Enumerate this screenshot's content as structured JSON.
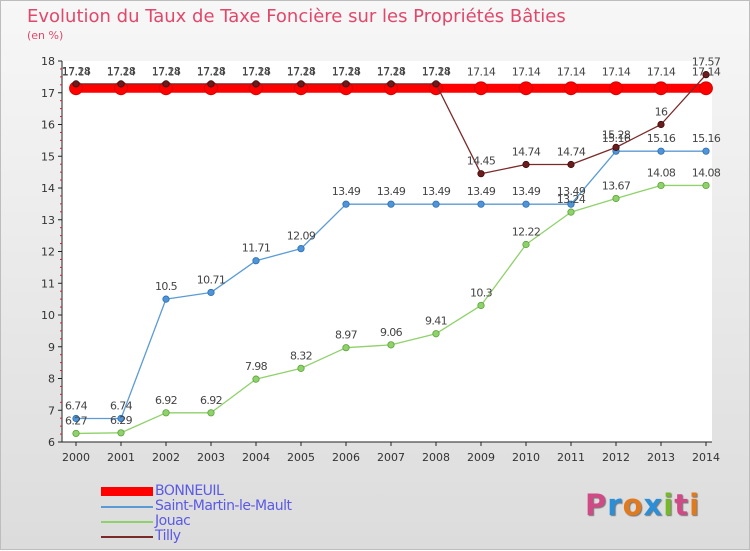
{
  "title": "Evolution du Taux de Taxe Foncière sur les Propriétés Bâties",
  "unit": "(en %)",
  "logo": {
    "text": "Proxiti",
    "colors": [
      "#d04a86",
      "#2a8fd6",
      "#e07a1f",
      "#2a8fd6",
      "#76b82a",
      "#d04a86",
      "#e07a1f"
    ]
  },
  "chart_data": {
    "type": "line",
    "x": [
      "2000",
      "2001",
      "2002",
      "2003",
      "2004",
      "2005",
      "2006",
      "2007",
      "2008",
      "2009",
      "2010",
      "2011",
      "2012",
      "2013",
      "2014"
    ],
    "ylim": [
      6,
      18
    ],
    "yticks": [
      "6",
      "7",
      "8",
      "9",
      "10",
      "11",
      "12",
      "13",
      "14",
      "15",
      "16",
      "17",
      "18"
    ],
    "grid": false,
    "legend_position": "bottom-left",
    "series": [
      {
        "name": "BONNEUIL",
        "color": "#ff0000",
        "values": [
          17.14,
          17.14,
          17.14,
          17.14,
          17.14,
          17.14,
          17.14,
          17.14,
          17.14,
          17.14,
          17.14,
          17.14,
          17.14,
          17.14,
          17.14
        ],
        "labels": [
          "17.14",
          "17.14",
          "17.14",
          "17.14",
          "17.14",
          "17.14",
          "17.14",
          "17.14",
          "17.14",
          "17.14",
          "17.14",
          "17.14",
          "17.14",
          "17.14",
          "17.14"
        ]
      },
      {
        "name": "Saint-Martin-le-Mault",
        "color": "#5b9bd5",
        "values": [
          6.74,
          6.74,
          10.5,
          10.71,
          11.71,
          12.09,
          13.49,
          13.49,
          13.49,
          13.49,
          13.49,
          13.49,
          15.16,
          15.16,
          15.16
        ],
        "labels": [
          "6.74",
          "6.74",
          "10.5",
          "10.71",
          "11.71",
          "12.09",
          "13.49",
          "13.49",
          "13.49",
          "13.49",
          "13.49",
          "13.49",
          "15.16",
          "15.16",
          "15.16"
        ]
      },
      {
        "name": "Jouac",
        "color": "#8fd16a",
        "values": [
          6.27,
          6.29,
          6.92,
          6.92,
          7.98,
          8.32,
          8.97,
          9.06,
          9.41,
          10.3,
          12.22,
          13.24,
          13.67,
          14.08,
          14.08
        ],
        "labels": [
          "6.27",
          "6.29",
          "6.92",
          "6.92",
          "7.98",
          "8.32",
          "8.97",
          "9.06",
          "9.41",
          "10.3",
          "12.22",
          "13.24",
          "13.67",
          "14.08",
          "14.08"
        ]
      },
      {
        "name": "Tilly",
        "color": "#7b2a2a",
        "values": [
          17.28,
          17.28,
          17.28,
          17.28,
          17.28,
          17.28,
          17.28,
          17.28,
          17.28,
          14.45,
          14.74,
          14.74,
          15.28,
          16,
          17.57
        ],
        "labels": [
          "17.28",
          "17.28",
          "17.28",
          "17.28",
          "17.28",
          "17.28",
          "17.28",
          "17.28",
          "17.28",
          "14.45",
          "14.74",
          "14.74",
          "15.28",
          "16",
          "17.57"
        ]
      }
    ]
  }
}
